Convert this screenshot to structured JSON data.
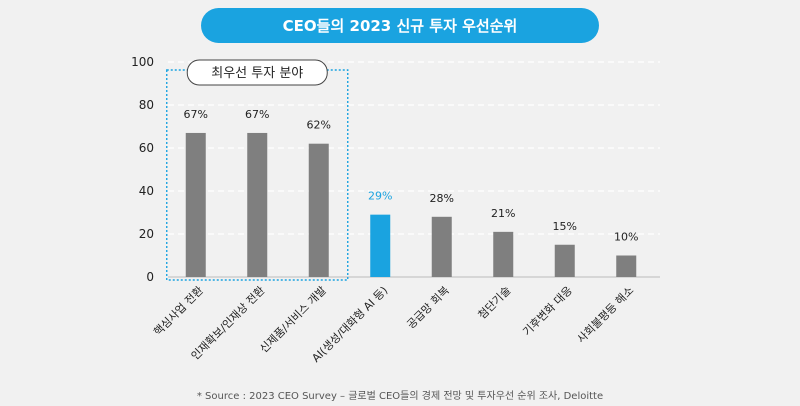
{
  "title": "CEO들의 2023 신규 투자 우선순위",
  "source": "* Source : 2023 CEO Survey – 글로벌 CEO들의 경제 전망 및 투자우선 순위 조사, Deloitte",
  "highlight_label": "최우선 투자 분야",
  "colors": {
    "accent": "#1aa3e0",
    "bar": "#7f7f7f",
    "text": "#222222"
  },
  "chart_data": {
    "type": "bar",
    "title": "CEO들의 2023 신규 투자 우선순위",
    "xlabel": "",
    "ylabel": "",
    "ylim": [
      0,
      100
    ],
    "yticks": [
      0,
      20,
      40,
      60,
      80,
      100
    ],
    "grid": true,
    "categories": [
      "핵심사업 전환",
      "인재확보/인재상 전환",
      "신제품/서비스 개발",
      "AI(생성/대화형 AI 등)",
      "공급망 회복",
      "첨단기술",
      "기후변화 대응",
      "사회불평등 해소"
    ],
    "values": [
      67,
      67,
      62,
      29,
      28,
      21,
      15,
      10
    ],
    "value_labels": [
      "67%",
      "67%",
      "62%",
      "29%",
      "28%",
      "21%",
      "15%",
      "10%"
    ],
    "highlighted_index": 3,
    "highlight_group": [
      0,
      1,
      2
    ]
  }
}
